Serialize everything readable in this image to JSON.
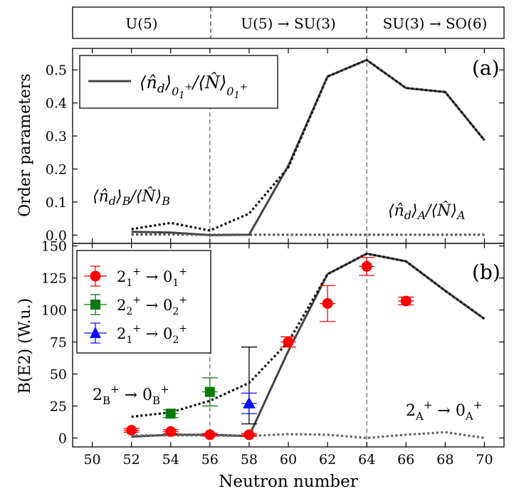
{
  "chart_data": [
    {
      "type": "line",
      "panel_label": "(a)",
      "ylabel": "Order parameters",
      "xlim": [
        49,
        71
      ],
      "ylim": [
        -0.025,
        0.565
      ],
      "yticks": [
        0.0,
        0.1,
        0.2,
        0.3,
        0.4,
        0.5
      ],
      "ytick_labels": [
        "0.0",
        "0.1",
        "0.2",
        "0.3",
        "0.4",
        "0.5"
      ],
      "vlines": [
        56,
        64
      ],
      "legend": {
        "position": "top-left",
        "entries": [
          "⟨n̂d⟩0₁⁺/⟨N̂⟩0₁⁺"
        ]
      },
      "annotations": [
        "⟨n̂d⟩B/⟨N̂⟩B",
        "⟨n̂d⟩A/⟨N̂⟩A"
      ],
      "series": [
        {
          "name": "⟨n̂d⟩0₁⁺/⟨N̂⟩0₁⁺",
          "style": "solid",
          "color": "#444444",
          "x": [
            52,
            54,
            56,
            58,
            60,
            62,
            64,
            66,
            68,
            70
          ],
          "y": [
            0.01,
            0.008,
            0.0,
            0.001,
            0.21,
            0.48,
            0.53,
            0.445,
            0.433,
            0.287
          ]
        },
        {
          "style": "dotted",
          "color": "#111111",
          "x": [
            52,
            54,
            56,
            58,
            60,
            62,
            64,
            66,
            68,
            70
          ],
          "y": [
            0.018,
            0.037,
            0.014,
            0.065,
            0.205,
            0.48,
            0.53,
            0.445,
            0.433,
            0.287
          ]
        },
        {
          "style": "dotted",
          "color": "#555555",
          "x": [
            52,
            54,
            56,
            58,
            60,
            62,
            64,
            66,
            68,
            70
          ],
          "y": [
            0.002,
            0.002,
            0.001,
            0.001,
            0.001,
            0.001,
            0.001,
            0.001,
            0.001,
            0.001
          ]
        }
      ]
    },
    {
      "type": "line",
      "panel_label": "(b)",
      "xlabel": "Neutron number",
      "ylabel": "B(E2) (W.u.)",
      "xlim": [
        49,
        71
      ],
      "ylim": [
        -7,
        152
      ],
      "xticks": [
        50,
        52,
        54,
        56,
        58,
        60,
        62,
        64,
        66,
        68,
        70
      ],
      "xtick_labels": [
        "50",
        "52",
        "54",
        "56",
        "58",
        "60",
        "62",
        "64",
        "66",
        "68",
        "70"
      ],
      "yticks": [
        0,
        25,
        50,
        75,
        100,
        125,
        150
      ],
      "ytick_labels": [
        "0",
        "25",
        "50",
        "75",
        "100",
        "125",
        "150"
      ],
      "vlines": [
        56,
        64
      ],
      "legend": {
        "position": "top-left",
        "entries": [
          "2₁⁺ → 0₁⁺",
          "2₂⁺ → 0₂⁺",
          "2₁⁺ → 0₂⁺"
        ]
      },
      "annotations": [
        "2B⁺ → 0B⁺",
        "2A⁺ → 0A⁺"
      ],
      "series": [
        {
          "style": "solid",
          "color": "#444444",
          "x": [
            52,
            54,
            56,
            58,
            60,
            62,
            64,
            66,
            68,
            70
          ],
          "y": [
            1,
            2.5,
            2.5,
            1.5,
            68,
            128,
            144,
            138,
            115,
            93
          ]
        },
        {
          "style": "dotted",
          "color": "#111111",
          "x": [
            52,
            54,
            56,
            58,
            60,
            62,
            64,
            66,
            68,
            70
          ],
          "y": [
            16.5,
            20,
            29,
            43,
            75,
            128,
            144,
            138,
            115,
            93
          ]
        },
        {
          "style": "dotted",
          "color": "#666666",
          "x": [
            52,
            54,
            56,
            58,
            60,
            62,
            64,
            66,
            68,
            70
          ],
          "y": [
            2,
            2,
            2,
            1.5,
            3,
            2.5,
            0,
            2.5,
            4.5,
            0
          ]
        }
      ],
      "points": [
        {
          "name": "2₁⁺ → 0₁⁺",
          "marker": "circle",
          "color": "#ff0000",
          "x": [
            52,
            54,
            56,
            58,
            60,
            62,
            64,
            66
          ],
          "y": [
            6,
            5,
            2.5,
            2.5,
            75,
            105,
            134,
            107
          ],
          "err": [
            1.5,
            1.5,
            1,
            1,
            4,
            14,
            7,
            3
          ]
        },
        {
          "name": "2₂⁺ → 0₂⁺",
          "marker": "square",
          "color": "#0a7a0a",
          "x": [
            54,
            56
          ],
          "y": [
            19,
            36
          ],
          "err": [
            3,
            11
          ]
        },
        {
          "name": "2₁⁺ → 0₂⁺",
          "marker": "triangle",
          "color": "#1010ff",
          "x": [
            58
          ],
          "y": [
            27
          ],
          "err": [
            8
          ]
        }
      ],
      "extra_errorbars": [
        {
          "x": 58,
          "y": 41,
          "err": 30,
          "color": "#000000"
        }
      ]
    }
  ],
  "top_bar": {
    "segments": [
      "U(5)",
      "U(5) → SU(3)",
      "SU(3) → SO(6)"
    ]
  },
  "labels": {
    "panel_a": "(a)",
    "panel_b": "(b)",
    "ylabel_a": "Order parameters",
    "ylabel_b": "B(E2) (W.u.)",
    "xlabel": "Neutron number"
  }
}
